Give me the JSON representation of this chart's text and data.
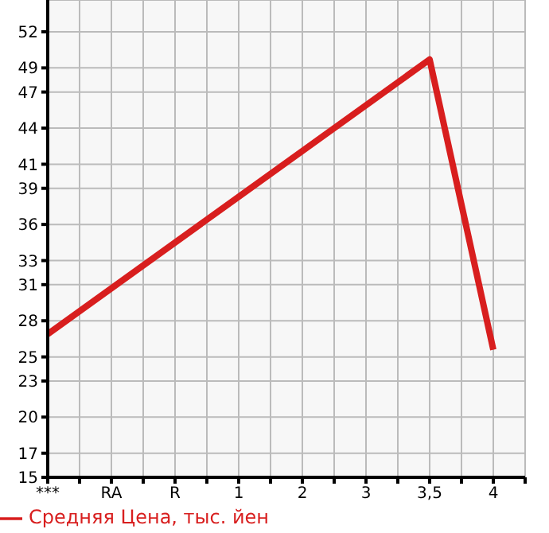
{
  "chart_data": {
    "type": "line",
    "categories": [
      "***",
      "RA",
      "R",
      "1",
      "2",
      "3",
      "3,5",
      "4"
    ],
    "series": [
      {
        "name": "Средняя Цена, тыс. йен",
        "color": "#d81e1e",
        "values": [
          26.9,
          null,
          null,
          null,
          null,
          null,
          49.7,
          25.6
        ]
      }
    ],
    "ylim": [
      15,
      54.64
    ],
    "yticks": [
      15,
      17,
      20,
      23,
      25,
      28,
      31,
      33,
      36,
      39,
      41,
      44,
      47,
      49,
      52
    ],
    "grid": true,
    "legend": "bottom left"
  }
}
